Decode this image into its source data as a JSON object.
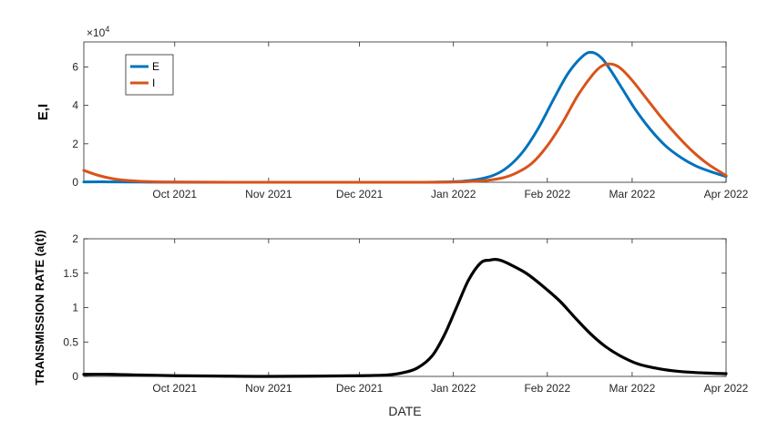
{
  "chart_data": [
    {
      "type": "line",
      "title": "",
      "xlabel": "",
      "ylabel": "E,I",
      "y_exponent_base": "×10",
      "y_exponent_power": "4",
      "x_ticks": [
        "2021-10-01",
        "2021-11-01",
        "2021-12-01",
        "2022-01-01",
        "2022-02-01",
        "2022-03-01",
        "2022-04-01"
      ],
      "x_tick_labels": [
        "Oct 2021",
        "Nov 2021",
        "Dec 2021",
        "Jan 2022",
        "Feb 2022",
        "Mar 2022",
        "Apr 2022"
      ],
      "xlim": [
        "2021-09-01",
        "2022-04-01"
      ],
      "ylim": [
        0,
        7.3
      ],
      "y_ticks": [
        0,
        2,
        4,
        6
      ],
      "y_tick_labels": [
        "0",
        "2",
        "4",
        "6"
      ],
      "legend_position": "top-left",
      "grid": false,
      "series": [
        {
          "name": "E",
          "color": "#0072BD",
          "x": [
            "2021-09-01",
            "2021-09-10",
            "2021-09-20",
            "2021-10-01",
            "2021-11-01",
            "2021-12-01",
            "2021-12-20",
            "2022-01-01",
            "2022-01-07",
            "2022-01-14",
            "2022-01-19",
            "2022-01-24",
            "2022-01-29",
            "2022-02-03",
            "2022-02-08",
            "2022-02-13",
            "2022-02-16",
            "2022-02-19",
            "2022-02-22",
            "2022-02-26",
            "2022-03-02",
            "2022-03-07",
            "2022-03-12",
            "2022-03-17",
            "2022-03-22",
            "2022-03-27",
            "2022-04-01"
          ],
          "values": [
            0.02,
            0.02,
            0.01,
            0.005,
            0.0,
            0.0,
            0.0,
            0.03,
            0.1,
            0.35,
            0.8,
            1.6,
            2.8,
            4.3,
            5.7,
            6.6,
            6.75,
            6.45,
            5.8,
            4.8,
            3.8,
            2.75,
            1.9,
            1.3,
            0.85,
            0.55,
            0.3
          ]
        },
        {
          "name": "I",
          "color": "#D95319",
          "x": [
            "2021-09-01",
            "2021-09-06",
            "2021-09-12",
            "2021-09-20",
            "2021-10-01",
            "2021-11-01",
            "2021-12-01",
            "2021-12-20",
            "2022-01-01",
            "2022-01-10",
            "2022-01-17",
            "2022-01-22",
            "2022-01-27",
            "2022-02-01",
            "2022-02-06",
            "2022-02-11",
            "2022-02-16",
            "2022-02-19",
            "2022-02-22",
            "2022-02-25",
            "2022-03-01",
            "2022-03-06",
            "2022-03-11",
            "2022-03-16",
            "2022-03-21",
            "2022-03-26",
            "2022-04-01"
          ],
          "values": [
            0.62,
            0.35,
            0.15,
            0.05,
            0.01,
            0.0,
            0.0,
            0.0,
            0.01,
            0.07,
            0.22,
            0.5,
            1.0,
            1.9,
            3.1,
            4.5,
            5.6,
            6.05,
            6.15,
            5.95,
            5.3,
            4.3,
            3.3,
            2.4,
            1.6,
            0.95,
            0.35
          ]
        }
      ]
    },
    {
      "type": "line",
      "title": "",
      "xlabel": "DATE",
      "ylabel": "TRANSMISSION RATE (a(t))",
      "x_ticks": [
        "2021-10-01",
        "2021-11-01",
        "2021-12-01",
        "2022-01-01",
        "2022-02-01",
        "2022-03-01",
        "2022-04-01"
      ],
      "x_tick_labels": [
        "Oct 2021",
        "Nov 2021",
        "Dec 2021",
        "Jan 2022",
        "Feb 2022",
        "Mar 2022",
        "Apr 2022"
      ],
      "xlim": [
        "2021-09-01",
        "2022-04-01"
      ],
      "ylim": [
        0,
        2
      ],
      "y_ticks": [
        0,
        0.5,
        1,
        1.5,
        2
      ],
      "y_tick_labels": [
        "0",
        "0.5",
        "1",
        "1.5",
        "2"
      ],
      "grid": false,
      "series": [
        {
          "color": "#000000",
          "x": [
            "2021-09-01",
            "2021-09-10",
            "2021-09-20",
            "2021-10-01",
            "2021-10-15",
            "2021-11-01",
            "2021-12-01",
            "2021-12-10",
            "2021-12-15",
            "2021-12-20",
            "2021-12-25",
            "2021-12-29",
            "2022-01-02",
            "2022-01-06",
            "2022-01-10",
            "2022-01-13",
            "2022-01-15",
            "2022-01-17",
            "2022-01-20",
            "2022-01-25",
            "2022-01-30",
            "2022-02-05",
            "2022-02-10",
            "2022-02-15",
            "2022-02-20",
            "2022-02-25",
            "2022-03-03",
            "2022-03-10",
            "2022-03-17",
            "2022-03-25",
            "2022-04-01"
          ],
          "values": [
            0.03,
            0.03,
            0.02,
            0.01,
            0.005,
            0.0,
            0.01,
            0.02,
            0.05,
            0.12,
            0.3,
            0.6,
            1.0,
            1.4,
            1.65,
            1.69,
            1.7,
            1.68,
            1.62,
            1.5,
            1.33,
            1.1,
            0.86,
            0.63,
            0.44,
            0.3,
            0.18,
            0.11,
            0.07,
            0.05,
            0.04
          ]
        }
      ]
    }
  ]
}
